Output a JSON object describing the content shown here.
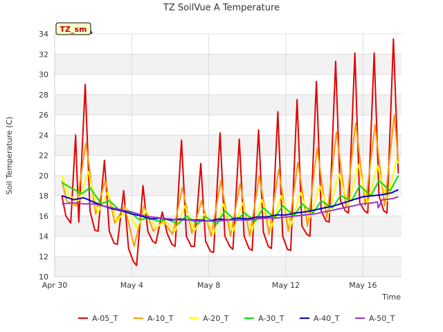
{
  "chart_data": {
    "type": "line",
    "title": "TZ SoilVue A Temperature",
    "xlabel": "Time",
    "ylabel": "Soil Temperature (C)",
    "tag": "TZ_sm",
    "xlim": [
      "2023-04-30",
      "2023-05-18"
    ],
    "ylim": [
      10,
      34
    ],
    "x_ticks": [
      {
        "date": "2023-04-30",
        "label": "Apr 30"
      },
      {
        "date": "2023-05-04",
        "label": "May 4"
      },
      {
        "date": "2023-05-08",
        "label": "May 8"
      },
      {
        "date": "2023-05-12",
        "label": "May 12"
      },
      {
        "date": "2023-05-16",
        "label": "May 16"
      }
    ],
    "y_ticks": [
      10,
      12,
      14,
      16,
      18,
      20,
      22,
      24,
      26,
      28,
      30,
      32,
      34
    ],
    "grid": true,
    "legend_position": "bottom",
    "series": [
      {
        "name": "A-05_T",
        "color": "#e00000",
        "x": [
          "2023-04-30 09:00",
          "2023-04-30 14:00",
          "2023-04-30 20:00",
          "2023-05-01 02:00",
          "2023-05-01 06:00",
          "2023-05-01 14:00",
          "2023-05-01 20:00",
          "2023-05-02 02:00",
          "2023-05-02 06:00",
          "2023-05-02 14:00",
          "2023-05-02 20:00",
          "2023-05-03 02:00",
          "2023-05-03 06:00",
          "2023-05-03 14:00",
          "2023-05-03 20:00",
          "2023-05-04 02:00",
          "2023-05-04 06:00",
          "2023-05-04 14:00",
          "2023-05-04 20:00",
          "2023-05-05 02:00",
          "2023-05-05 06:00",
          "2023-05-05 14:00",
          "2023-05-05 20:00",
          "2023-05-06 02:00",
          "2023-05-06 06:00",
          "2023-05-06 14:00",
          "2023-05-06 20:00",
          "2023-05-07 02:00",
          "2023-05-07 06:00",
          "2023-05-07 14:00",
          "2023-05-07 20:00",
          "2023-05-08 02:00",
          "2023-05-08 06:00",
          "2023-05-08 14:00",
          "2023-05-08 20:00",
          "2023-05-09 02:00",
          "2023-05-09 06:00",
          "2023-05-09 14:00",
          "2023-05-09 20:00",
          "2023-05-10 02:00",
          "2023-05-10 06:00",
          "2023-05-10 14:00",
          "2023-05-10 20:00",
          "2023-05-11 02:00",
          "2023-05-11 06:00",
          "2023-05-11 14:00",
          "2023-05-11 20:00",
          "2023-05-12 02:00",
          "2023-05-12 06:00",
          "2023-05-12 14:00",
          "2023-05-12 20:00",
          "2023-05-13 02:00",
          "2023-05-13 06:00",
          "2023-05-13 14:00",
          "2023-05-13 20:00",
          "2023-05-14 02:00",
          "2023-05-14 06:00",
          "2023-05-14 14:00",
          "2023-05-14 20:00",
          "2023-05-15 02:00",
          "2023-05-15 06:00",
          "2023-05-15 14:00",
          "2023-05-15 20:00",
          "2023-05-16 02:00",
          "2023-05-16 06:00",
          "2023-05-16 14:00",
          "2023-05-16 20:00",
          "2023-05-17 02:00",
          "2023-05-17 06:00",
          "2023-05-17 14:00",
          "2023-05-17 20:00"
        ],
        "y": [
          18.0,
          16.0,
          15.3,
          24.0,
          15.4,
          29.0,
          16.5,
          14.6,
          14.5,
          21.5,
          14.5,
          13.3,
          13.2,
          18.5,
          12.8,
          11.5,
          11.1,
          19.0,
          14.5,
          13.5,
          13.3,
          16.4,
          14.3,
          13.2,
          13.0,
          23.5,
          14.0,
          13.0,
          13.0,
          21.2,
          13.5,
          12.5,
          12.4,
          24.2,
          14.0,
          13.0,
          12.7,
          23.6,
          14.0,
          12.8,
          12.6,
          24.5,
          14.4,
          13.0,
          12.8,
          26.3,
          14.0,
          12.7,
          12.6,
          27.5,
          15.0,
          14.2,
          14.0,
          29.3,
          16.5,
          15.5,
          15.4,
          31.3,
          17.5,
          16.5,
          16.3,
          32.1,
          17.3,
          16.5,
          16.3,
          32.1,
          18.0,
          16.5,
          16.3,
          33.5,
          20.2
        ]
      },
      {
        "name": "A-10_T",
        "color": "#ff9900",
        "x": [
          "2023-04-30 09:00",
          "2023-04-30 15:00",
          "2023-05-01 03:00",
          "2023-05-01 15:00",
          "2023-05-02 03:00",
          "2023-05-02 15:00",
          "2023-05-03 03:00",
          "2023-05-03 15:00",
          "2023-05-04 03:00",
          "2023-05-04 15:00",
          "2023-05-05 03:00",
          "2023-05-05 15:00",
          "2023-05-06 03:00",
          "2023-05-06 15:00",
          "2023-05-07 03:00",
          "2023-05-07 15:00",
          "2023-05-08 03:00",
          "2023-05-08 15:00",
          "2023-05-09 03:00",
          "2023-05-09 15:00",
          "2023-05-10 03:00",
          "2023-05-10 15:00",
          "2023-05-11 03:00",
          "2023-05-11 15:00",
          "2023-05-12 03:00",
          "2023-05-12 15:00",
          "2023-05-13 03:00",
          "2023-05-13 15:00",
          "2023-05-14 03:00",
          "2023-05-14 15:00",
          "2023-05-15 03:00",
          "2023-05-15 15:00",
          "2023-05-16 03:00",
          "2023-05-16 15:00",
          "2023-05-17 03:00",
          "2023-05-17 15:00",
          "2023-05-17 20:00"
        ],
        "y": [
          19.5,
          17.5,
          17.0,
          23.2,
          16.2,
          19.5,
          15.3,
          17.0,
          13.0,
          17.0,
          14.5,
          15.5,
          14.2,
          18.8,
          14.3,
          17.5,
          14.0,
          19.5,
          14.0,
          19.2,
          14.0,
          20.0,
          14.2,
          20.6,
          14.5,
          21.3,
          15.0,
          22.7,
          15.8,
          24.3,
          16.8,
          25.2,
          17.0,
          25.0,
          17.0,
          26.0,
          21.5
        ]
      },
      {
        "name": "A-20_T",
        "color": "#ffff00",
        "x": [
          "2023-04-30 09:00",
          "2023-04-30 18:00",
          "2023-05-01 06:00",
          "2023-05-01 18:00",
          "2023-05-02 06:00",
          "2023-05-02 18:00",
          "2023-05-03 06:00",
          "2023-05-03 18:00",
          "2023-05-04 06:00",
          "2023-05-04 18:00",
          "2023-05-05 06:00",
          "2023-05-05 18:00",
          "2023-05-06 06:00",
          "2023-05-06 18:00",
          "2023-05-07 06:00",
          "2023-05-07 18:00",
          "2023-05-08 06:00",
          "2023-05-08 18:00",
          "2023-05-09 06:00",
          "2023-05-09 18:00",
          "2023-05-10 06:00",
          "2023-05-10 18:00",
          "2023-05-11 06:00",
          "2023-05-11 18:00",
          "2023-05-12 06:00",
          "2023-05-12 18:00",
          "2023-05-13 06:00",
          "2023-05-13 18:00",
          "2023-05-14 06:00",
          "2023-05-14 18:00",
          "2023-05-15 06:00",
          "2023-05-15 18:00",
          "2023-05-16 06:00",
          "2023-05-16 18:00",
          "2023-05-17 06:00",
          "2023-05-17 18:00",
          "2023-05-17 20:00"
        ],
        "y": [
          20.0,
          18.0,
          17.5,
          20.4,
          16.3,
          18.4,
          15.5,
          16.8,
          14.8,
          16.5,
          14.8,
          15.5,
          14.5,
          17.0,
          14.5,
          16.2,
          14.2,
          17.2,
          14.4,
          17.3,
          14.5,
          17.6,
          14.8,
          18.0,
          15.0,
          18.3,
          15.8,
          19.0,
          16.3,
          20.2,
          17.0,
          21.1,
          17.2,
          21.0,
          17.5,
          21.6,
          21.2
        ]
      },
      {
        "name": "A-30_T",
        "color": "#00e000",
        "x": [
          "2023-04-30 09:00",
          "2023-04-30 20:00",
          "2023-05-01 10:00",
          "2023-05-01 20:00",
          "2023-05-02 10:00",
          "2023-05-02 20:00",
          "2023-05-03 10:00",
          "2023-05-03 20:00",
          "2023-05-04 10:00",
          "2023-05-04 20:00",
          "2023-05-05 10:00",
          "2023-05-05 20:00",
          "2023-05-06 10:00",
          "2023-05-06 20:00",
          "2023-05-07 10:00",
          "2023-05-07 20:00",
          "2023-05-08 10:00",
          "2023-05-08 20:00",
          "2023-05-09 10:00",
          "2023-05-09 20:00",
          "2023-05-10 10:00",
          "2023-05-10 20:00",
          "2023-05-11 10:00",
          "2023-05-11 20:00",
          "2023-05-12 10:00",
          "2023-05-12 20:00",
          "2023-05-13 10:00",
          "2023-05-13 20:00",
          "2023-05-14 10:00",
          "2023-05-14 20:00",
          "2023-05-15 10:00",
          "2023-05-15 20:00",
          "2023-05-16 10:00",
          "2023-05-16 20:00",
          "2023-05-17 10:00",
          "2023-05-17 20:00"
        ],
        "y": [
          19.3,
          18.8,
          18.2,
          18.8,
          17.2,
          17.5,
          16.5,
          16.5,
          15.6,
          15.8,
          15.5,
          15.7,
          15.2,
          16.0,
          15.2,
          15.9,
          15.2,
          16.5,
          15.5,
          16.3,
          15.5,
          16.8,
          15.8,
          17.0,
          16.0,
          17.2,
          16.3,
          17.5,
          16.8,
          18.0,
          17.5,
          19.0,
          18.0,
          19.5,
          18.5,
          20.0
        ]
      },
      {
        "name": "A-40_T",
        "color": "#0000cc",
        "x": [
          "2023-04-30 09:00",
          "2023-05-01 00:00",
          "2023-05-01 12:00",
          "2023-05-02 00:00",
          "2023-05-02 12:00",
          "2023-05-03 00:00",
          "2023-05-03 12:00",
          "2023-05-04 00:00",
          "2023-05-04 12:00",
          "2023-05-05 00:00",
          "2023-05-05 12:00",
          "2023-05-06 00:00",
          "2023-05-06 12:00",
          "2023-05-07 00:00",
          "2023-05-07 12:00",
          "2023-05-08 00:00",
          "2023-05-08 12:00",
          "2023-05-09 00:00",
          "2023-05-09 12:00",
          "2023-05-10 00:00",
          "2023-05-10 12:00",
          "2023-05-11 00:00",
          "2023-05-11 12:00",
          "2023-05-12 00:00",
          "2023-05-12 12:00",
          "2023-05-13 00:00",
          "2023-05-13 12:00",
          "2023-05-14 00:00",
          "2023-05-14 12:00",
          "2023-05-15 00:00",
          "2023-05-15 12:00",
          "2023-05-16 00:00",
          "2023-05-16 12:00",
          "2023-05-17 00:00",
          "2023-05-17 12:00",
          "2023-05-17 20:00"
        ],
        "y": [
          18.0,
          17.6,
          17.8,
          17.4,
          17.0,
          16.7,
          16.5,
          16.2,
          16.0,
          15.7,
          15.8,
          15.6,
          15.7,
          15.6,
          15.6,
          15.5,
          15.7,
          15.6,
          15.8,
          15.7,
          15.9,
          15.9,
          16.1,
          16.1,
          16.3,
          16.4,
          16.6,
          16.8,
          17.0,
          17.3,
          17.6,
          17.9,
          18.0,
          18.1,
          18.3,
          18.6
        ]
      },
      {
        "name": "A-50_T",
        "color": "#9933cc",
        "x": [
          "2023-04-30 09:00",
          "2023-05-01 00:00",
          "2023-05-01 12:00",
          "2023-05-02 00:00",
          "2023-05-02 12:00",
          "2023-05-03 00:00",
          "2023-05-03 12:00",
          "2023-05-04 00:00",
          "2023-05-04 12:00",
          "2023-05-05 00:00",
          "2023-05-05 12:00",
          "2023-05-06 00:00",
          "2023-05-06 12:00",
          "2023-05-07 00:00",
          "2023-05-07 12:00",
          "2023-05-08 00:00",
          "2023-05-08 12:00",
          "2023-05-09 00:00",
          "2023-05-09 12:00",
          "2023-05-10 00:00",
          "2023-05-10 12:00",
          "2023-05-11 00:00",
          "2023-05-11 12:00",
          "2023-05-12 00:00",
          "2023-05-12 12:00",
          "2023-05-13 00:00",
          "2023-05-13 12:00",
          "2023-05-14 00:00",
          "2023-05-14 12:00",
          "2023-05-15 00:00",
          "2023-05-15 12:00",
          "2023-05-16 00:00",
          "2023-05-16 12:00",
          "2023-05-16 18:00",
          "2023-05-16 19:00",
          "2023-05-17 00:00",
          "2023-05-17 12:00",
          "2023-05-17 20:00"
        ],
        "y": [
          17.2,
          17.3,
          17.2,
          17.2,
          17.0,
          16.8,
          16.6,
          16.4,
          16.1,
          15.9,
          15.8,
          15.7,
          15.6,
          15.6,
          15.5,
          15.5,
          15.5,
          15.6,
          15.6,
          15.6,
          15.7,
          15.8,
          15.8,
          15.9,
          16.0,
          16.1,
          16.2,
          16.4,
          16.6,
          16.8,
          17.0,
          17.2,
          17.3,
          17.4,
          16.8,
          17.6,
          17.7,
          17.9
        ]
      }
    ]
  }
}
